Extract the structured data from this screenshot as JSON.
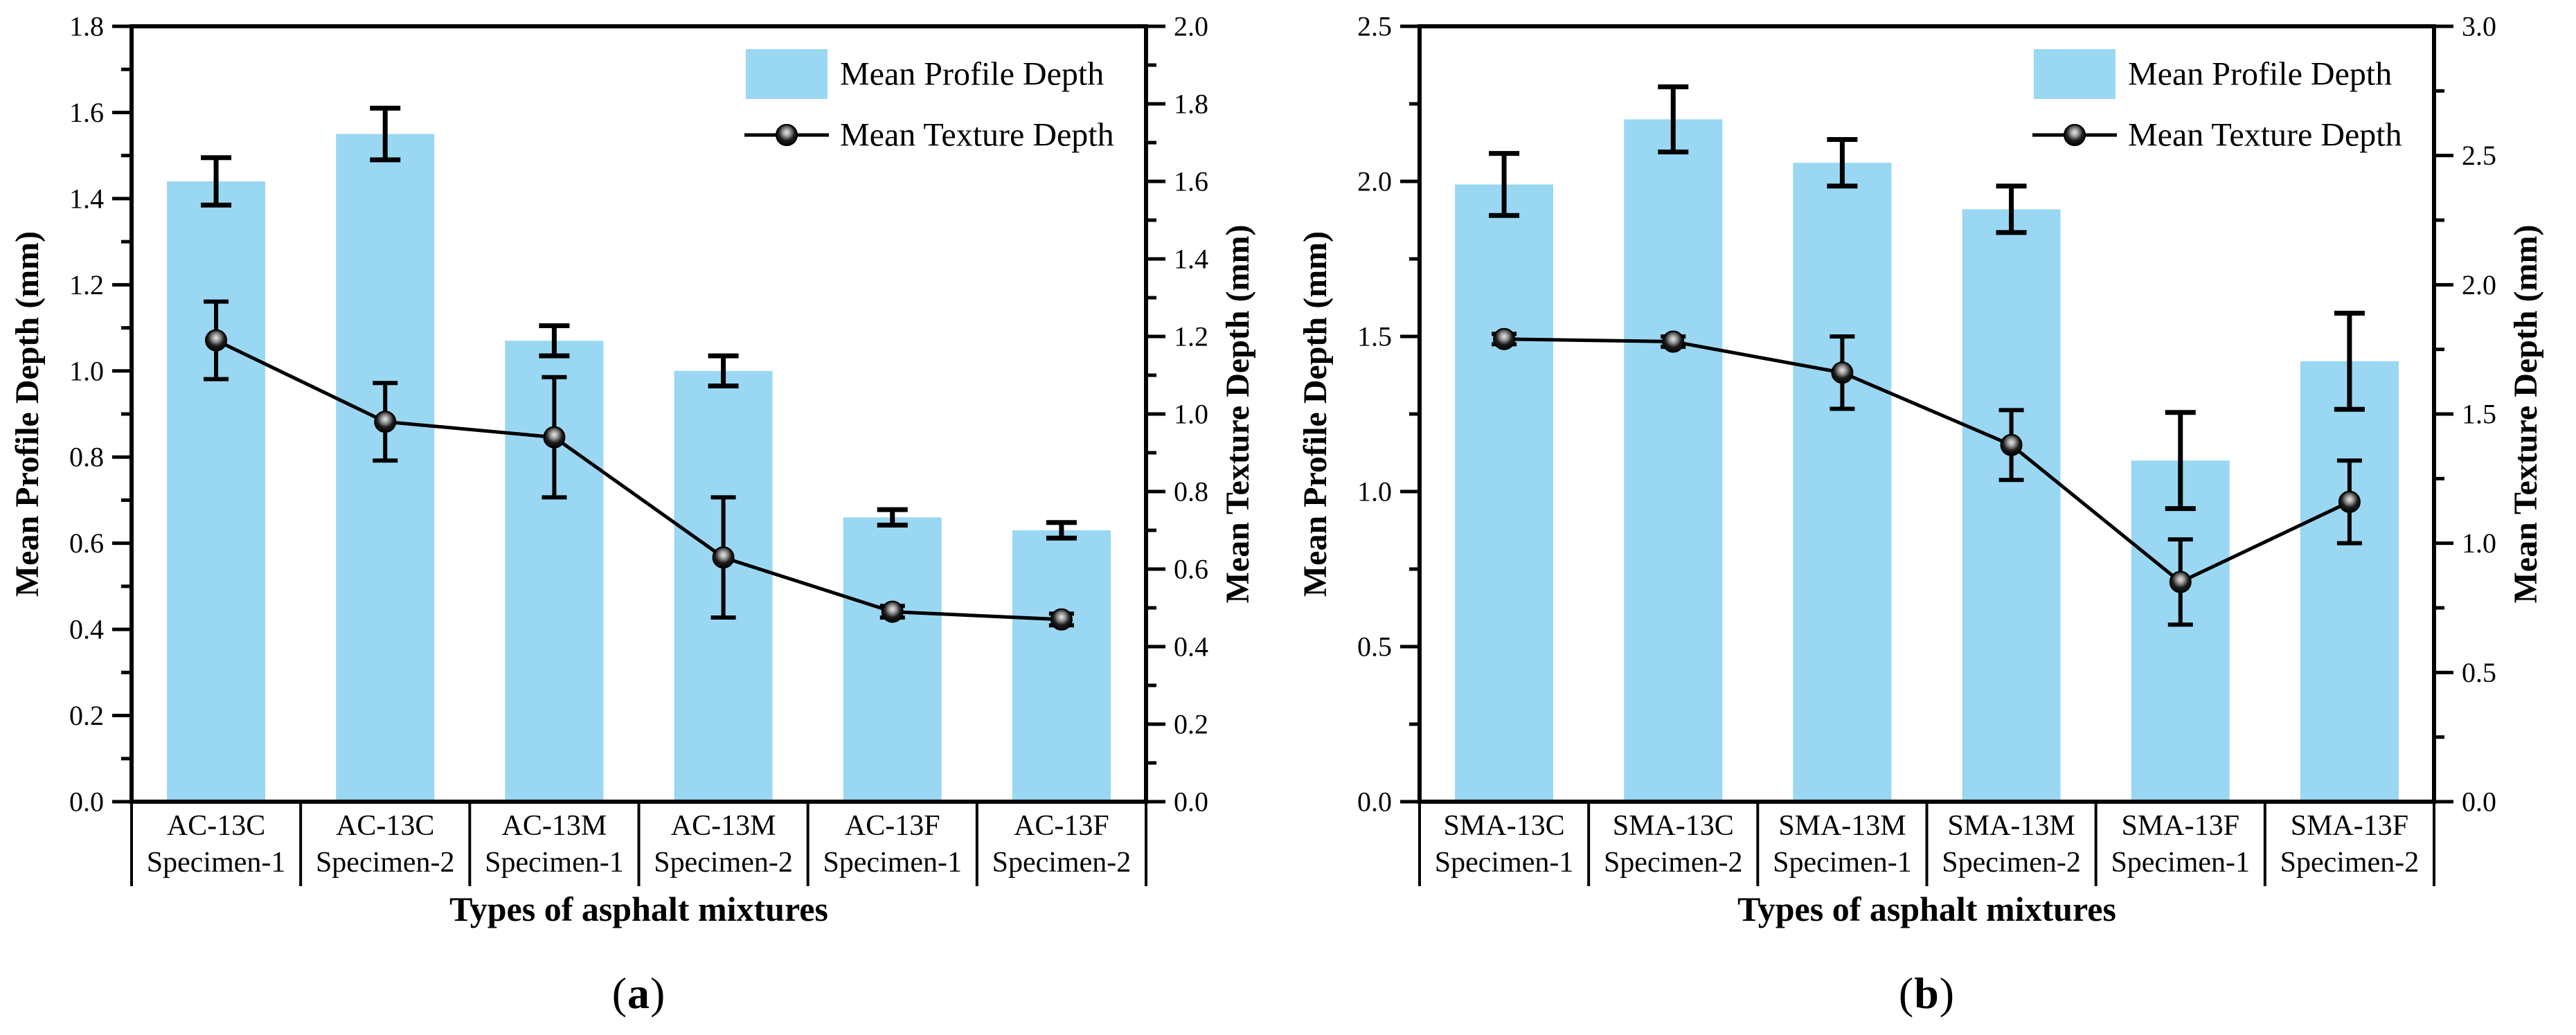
{
  "colors": {
    "background": "#ffffff",
    "bar_fill": "#9AD7F2",
    "line": "#000000",
    "axis": "#000000",
    "marker_highlight": "#e8e8e8"
  },
  "chart_data": [
    {
      "type": "bar+line",
      "caption": {
        "open": "(",
        "letter": "a",
        "close": ")"
      },
      "xlabel": "Types of asphalt mixtures",
      "y_left": {
        "label": "Mean Profile Depth (mm)",
        "min": 0,
        "max": 1.8,
        "major": 0.2,
        "minor": 0.1,
        "decimals": 1
      },
      "y_right": {
        "label": "Mean Texture Depth (mm)",
        "min": 0,
        "max": 2.0,
        "major": 0.2,
        "minor": 0.1,
        "decimals": 1
      },
      "categories": [
        [
          "AC-13C",
          "Specimen-1"
        ],
        [
          "AC-13C",
          "Specimen-2"
        ],
        [
          "AC-13M",
          "Specimen-1"
        ],
        [
          "AC-13M",
          "Specimen-2"
        ],
        [
          "AC-13F",
          "Specimen-1"
        ],
        [
          "AC-13F",
          "Specimen-2"
        ]
      ],
      "series": [
        {
          "name": "Mean Profile Depth",
          "type": "bar",
          "axis": "left",
          "values": [
            1.44,
            1.55,
            1.07,
            1.0,
            0.66,
            0.63
          ],
          "errors": [
            0.055,
            0.06,
            0.035,
            0.035,
            0.018,
            0.018
          ]
        },
        {
          "name": "Mean Texture Depth",
          "type": "line",
          "axis": "right",
          "values": [
            1.19,
            0.98,
            0.94,
            0.63,
            0.49,
            0.47
          ],
          "errors": [
            0.1,
            0.1,
            0.155,
            0.155,
            0.015,
            0.015
          ]
        }
      ],
      "legend": {
        "items": [
          "Mean Profile Depth",
          "Mean Texture Depth"
        ],
        "position": "top-right"
      }
    },
    {
      "type": "bar+line",
      "caption": {
        "open": "(",
        "letter": "b",
        "close": ")"
      },
      "xlabel": "Types of asphalt mixtures",
      "y_left": {
        "label": "Mean Profile Depth (mm)",
        "min": 0,
        "max": 2.5,
        "major": 0.5,
        "minor": 0.25,
        "decimals": 1
      },
      "y_right": {
        "label": "Mean Texture Depth (mm)",
        "min": 0,
        "max": 3.0,
        "major": 0.5,
        "minor": 0.25,
        "decimals": 1
      },
      "categories": [
        [
          "SMA-13C",
          "Specimen-1"
        ],
        [
          "SMA-13C",
          "Specimen-2"
        ],
        [
          "SMA-13M",
          "Specimen-1"
        ],
        [
          "SMA-13M",
          "Specimen-2"
        ],
        [
          "SMA-13F",
          "Specimen-1"
        ],
        [
          "SMA-13F",
          "Specimen-2"
        ]
      ],
      "series": [
        {
          "name": "Mean Profile Depth",
          "type": "bar",
          "axis": "left",
          "values": [
            1.99,
            2.2,
            2.06,
            1.91,
            1.1,
            1.42
          ],
          "errors": [
            0.1,
            0.105,
            0.075,
            0.075,
            0.155,
            0.155
          ]
        },
        {
          "name": "Mean Texture Depth",
          "type": "line",
          "axis": "right",
          "values": [
            1.79,
            1.78,
            1.66,
            1.38,
            0.85,
            1.16
          ],
          "errors": [
            0.02,
            0.02,
            0.14,
            0.135,
            0.165,
            0.16
          ]
        }
      ],
      "legend": {
        "items": [
          "Mean Profile Depth",
          "Mean Texture Depth"
        ],
        "position": "top-right"
      }
    }
  ]
}
